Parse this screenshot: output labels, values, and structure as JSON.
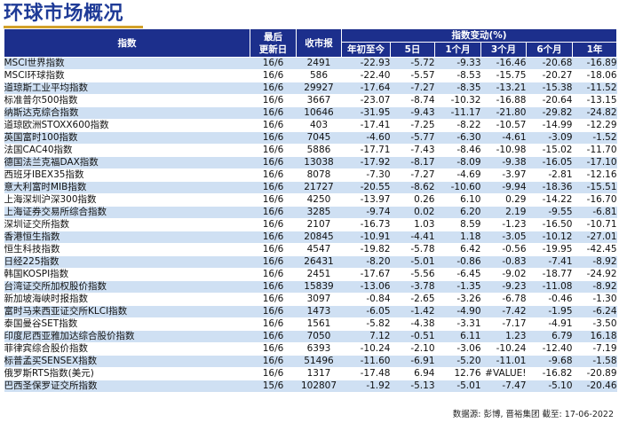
{
  "title": "环球市场概况",
  "headers": {
    "index": "指数",
    "update_line1": "最后",
    "update_line2": "更新日",
    "close": "收市报",
    "change_group": "指数变动(%)",
    "periods": [
      "年初至今",
      "5日",
      "1个月",
      "3个月",
      "6个月",
      "1年"
    ]
  },
  "rows": [
    {
      "name": "MSCI世界指数",
      "date": "16/6",
      "close": "2491",
      "changes": [
        "-22.93",
        "-5.72",
        "-9.33",
        "-16.46",
        "-20.68",
        "-16.89"
      ]
    },
    {
      "name": "MSCI环球指数",
      "date": "16/6",
      "close": "586",
      "changes": [
        "-22.40",
        "-5.57",
        "-8.53",
        "-15.75",
        "-20.27",
        "-18.06"
      ]
    },
    {
      "name": "道琼斯工业平均指数",
      "date": "16/6",
      "close": "29927",
      "changes": [
        "-17.64",
        "-7.27",
        "-8.35",
        "-13.21",
        "-15.38",
        "-11.52"
      ]
    },
    {
      "name": "标准普尔500指数",
      "date": "16/6",
      "close": "3667",
      "changes": [
        "-23.07",
        "-8.74",
        "-10.32",
        "-16.88",
        "-20.64",
        "-13.15"
      ]
    },
    {
      "name": "纳斯达克综合指数",
      "date": "16/6",
      "close": "10646",
      "changes": [
        "-31.95",
        "-9.43",
        "-11.17",
        "-21.80",
        "-29.82",
        "-24.82"
      ]
    },
    {
      "name": "道琼欧洲STOXX600指数",
      "date": "16/6",
      "close": "403",
      "changes": [
        "-17.41",
        "-7.25",
        "-8.22",
        "-10.57",
        "-14.99",
        "-12.29"
      ]
    },
    {
      "name": "英国富时100指数",
      "date": "16/6",
      "close": "7045",
      "changes": [
        "-4.60",
        "-5.77",
        "-6.30",
        "-4.61",
        "-3.09",
        "-1.52"
      ]
    },
    {
      "name": "法国CAC40指数",
      "date": "16/6",
      "close": "5886",
      "changes": [
        "-17.71",
        "-7.43",
        "-8.46",
        "-10.98",
        "-15.02",
        "-11.70"
      ]
    },
    {
      "name": "德国法兰克福DAX指数",
      "date": "16/6",
      "close": "13038",
      "changes": [
        "-17.92",
        "-8.17",
        "-8.09",
        "-9.38",
        "-16.05",
        "-17.10"
      ]
    },
    {
      "name": "西班牙IBEX35指数",
      "date": "16/6",
      "close": "8078",
      "changes": [
        "-7.30",
        "-7.27",
        "-4.69",
        "-3.97",
        "-2.81",
        "-12.16"
      ]
    },
    {
      "name": "意大利富时MIB指数",
      "date": "16/6",
      "close": "21727",
      "changes": [
        "-20.55",
        "-8.62",
        "-10.60",
        "-9.94",
        "-18.36",
        "-15.51"
      ]
    },
    {
      "name": "上海深圳沪深300指数",
      "date": "16/6",
      "close": "4250",
      "changes": [
        "-13.97",
        "0.26",
        "6.10",
        "0.29",
        "-14.22",
        "-16.70"
      ]
    },
    {
      "name": "上海证券交易所综合指数",
      "date": "16/6",
      "close": "3285",
      "changes": [
        "-9.74",
        "0.02",
        "6.20",
        "2.19",
        "-9.55",
        "-6.81"
      ]
    },
    {
      "name": "深圳证交所指数",
      "date": "16/6",
      "close": "2107",
      "changes": [
        "-16.73",
        "1.03",
        "8.59",
        "-1.23",
        "-16.50",
        "-10.71"
      ]
    },
    {
      "name": "香港恒生指数",
      "date": "16/6",
      "close": "20845",
      "changes": [
        "-10.91",
        "-4.41",
        "1.18",
        "-3.05",
        "-10.12",
        "-27.01"
      ]
    },
    {
      "name": "恒生科技指数",
      "date": "16/6",
      "close": "4547",
      "changes": [
        "-19.82",
        "-5.78",
        "6.42",
        "-0.56",
        "-19.95",
        "-42.45"
      ]
    },
    {
      "name": "日经225指数",
      "date": "16/6",
      "close": "26431",
      "changes": [
        "-8.20",
        "-5.01",
        "-0.86",
        "-0.83",
        "-7.41",
        "-8.92"
      ]
    },
    {
      "name": "韩国KOSPI指数",
      "date": "16/6",
      "close": "2451",
      "changes": [
        "-17.67",
        "-5.56",
        "-6.45",
        "-9.02",
        "-18.77",
        "-24.92"
      ]
    },
    {
      "name": "台湾证交所加权股价指数",
      "date": "16/6",
      "close": "15839",
      "changes": [
        "-13.06",
        "-3.78",
        "-1.35",
        "-9.23",
        "-11.08",
        "-8.92"
      ]
    },
    {
      "name": "新加坡海峡时报指数",
      "date": "16/6",
      "close": "3097",
      "changes": [
        "-0.84",
        "-2.65",
        "-3.26",
        "-6.78",
        "-0.46",
        "-1.30"
      ]
    },
    {
      "name": "富时马来西亚证交所KLCI指数",
      "date": "16/6",
      "close": "1473",
      "changes": [
        "-6.05",
        "-1.42",
        "-4.90",
        "-7.42",
        "-1.95",
        "-6.24"
      ]
    },
    {
      "name": "泰国曼谷SET指数",
      "date": "16/6",
      "close": "1561",
      "changes": [
        "-5.82",
        "-4.38",
        "-3.31",
        "-7.17",
        "-4.91",
        "-3.50"
      ]
    },
    {
      "name": "印度尼西亚雅加达综合股价指数",
      "date": "16/6",
      "close": "7050",
      "changes": [
        "7.12",
        "-0.51",
        "6.11",
        "1.23",
        "6.79",
        "16.18"
      ]
    },
    {
      "name": "菲律宾综合股价指数",
      "date": "16/6",
      "close": "6393",
      "changes": [
        "-10.24",
        "-2.10",
        "-3.06",
        "-10.24",
        "-12.40",
        "-7.19"
      ]
    },
    {
      "name": "标普孟买SENSEX指数",
      "date": "16/6",
      "close": "51496",
      "changes": [
        "-11.60",
        "-6.91",
        "-5.20",
        "-11.01",
        "-9.68",
        "-1.58"
      ]
    },
    {
      "name": "俄罗斯RTS指数(美元)",
      "date": "16/6",
      "close": "1317",
      "changes": [
        "-17.48",
        "6.94",
        "12.76",
        "#VALUE!",
        "-16.82",
        "-20.89"
      ]
    },
    {
      "name": "巴西圣保罗证交所指数",
      "date": "15/6",
      "close": "102807",
      "changes": [
        "-1.92",
        "-5.13",
        "-5.01",
        "-7.47",
        "-5.10",
        "-20.46"
      ]
    }
  ],
  "source": "数据源: 彭博, 晋裕集团 截至: 17-06-2022"
}
